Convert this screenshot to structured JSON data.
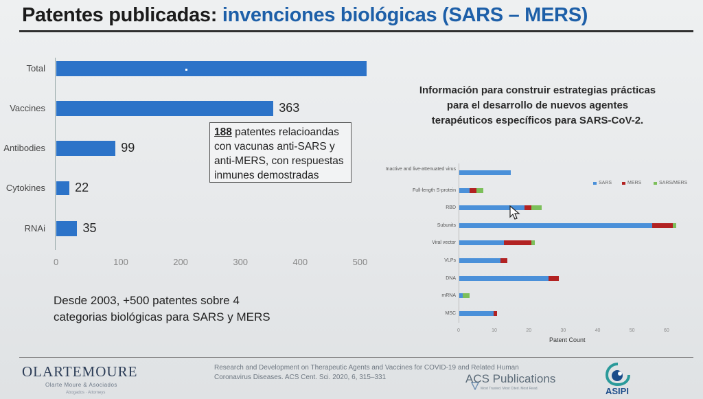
{
  "title": {
    "prefix": "Patentes publicadas: ",
    "accent": "invenciones biológicas (SARS – MERS)"
  },
  "left_chart": {
    "categories": [
      "Total",
      "Vaccines",
      "Antibodies",
      "Cytokines",
      "RNAi"
    ],
    "values": [
      519,
      363,
      99,
      22,
      35
    ],
    "value_labels": [
      "",
      "363",
      "99",
      "22",
      "35"
    ],
    "ticks": [
      "0",
      "100",
      "200",
      "300",
      "400",
      "500"
    ],
    "xlim": [
      0,
      520
    ],
    "color": "#2c73c8"
  },
  "callout": {
    "number": "188",
    "text": " patentes relacioandas con vacunas anti-SARS y anti-MERS, con respuestas inmunes demostradas"
  },
  "note": {
    "line1": "Desde 2003, +500 patentes sobre 4",
    "line2": "categorias biológicas para SARS y MERS"
  },
  "right_info": {
    "line1": "Información para construir estrategias prácticas",
    "line2": "para el desarrollo de nuevos agentes",
    "line3": "terapéuticos específicos para SARS-CoV-2."
  },
  "chart_data": [
    {
      "type": "bar",
      "orientation": "horizontal",
      "categories": [
        "Total",
        "Vaccines",
        "Antibodies",
        "Cytokines",
        "RNAi"
      ],
      "values": [
        519,
        363,
        99,
        22,
        35
      ],
      "xlim": [
        0,
        520
      ]
    },
    {
      "type": "bar",
      "orientation": "horizontal",
      "stacked": true,
      "categories": [
        "Inactive and live-attenuated virus",
        "Full-length S-protein",
        "RBD",
        "Subunits",
        "Viral vector",
        "VLPs",
        "DNA",
        "mRNA",
        "MSC"
      ],
      "series": [
        {
          "name": "SARS",
          "color": "#4a90d9",
          "values": [
            15,
            3,
            19,
            56,
            13,
            12,
            26,
            1,
            10
          ]
        },
        {
          "name": "MERS",
          "color": "#b22222",
          "values": [
            0,
            2,
            2,
            6,
            8,
            2,
            3,
            0,
            1
          ]
        },
        {
          "name": "SARS/MERS",
          "color": "#7cbf5a",
          "values": [
            0,
            2,
            3,
            1,
            1,
            0,
            0,
            2,
            0
          ]
        }
      ],
      "ticks": [
        "0",
        "10",
        "20",
        "30",
        "40",
        "50",
        "60"
      ],
      "xlim": [
        0,
        63
      ],
      "xlabel": "Patent Count",
      "legend": "top-right"
    }
  ],
  "footer": {
    "logo": "OlarteMoure",
    "logo_sub": "Olarte Moure & Asociados",
    "logo_sub2": "Abogados · Attorneys",
    "citation_line1": "Research and Development on Therapeutic Agents and Vaccines for COVID-19 and Related Human",
    "citation_line2": "Coronavirus Diseases. ACS Cent. Sci. 2020, 6, 315–331",
    "acs": "ACS Publications",
    "acs_sub": "Most Trusted. Most Cited. Most Read.",
    "asipi": "ASIPI"
  }
}
